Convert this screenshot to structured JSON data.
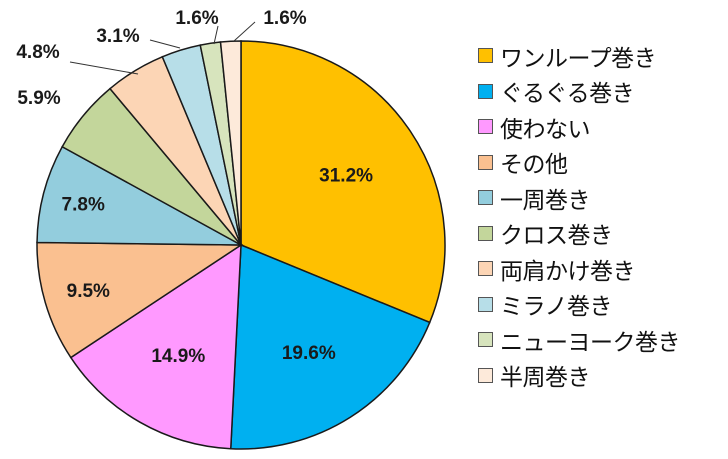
{
  "chart_data": {
    "type": "pie",
    "categories": [
      "ワンループ巻き",
      "ぐるぐる巻き",
      "使わない",
      "その他",
      "一周巻き",
      "クロス巻き",
      "両肩かけ巻き",
      "ミラノ巻き",
      "ニューヨーク巻き",
      "半周巻き"
    ],
    "values": [
      31.2,
      19.6,
      14.9,
      9.5,
      7.8,
      5.9,
      4.8,
      3.1,
      1.6,
      1.6
    ],
    "labels": [
      "31.2%",
      "19.6%",
      "14.9%",
      "9.5%",
      "7.8%",
      "5.9%",
      "4.8%",
      "3.1%",
      "1.6%",
      "1.6%"
    ],
    "colors": [
      "#FFC000",
      "#00B0F0",
      "#FF99FF",
      "#FAC090",
      "#93CDDD",
      "#C3D69B",
      "#FCD5B5",
      "#B7DEE8",
      "#D7E4BD",
      "#FDEADA"
    ],
    "legend_position": "right",
    "start_angle": "12 o'clock, clockwise"
  }
}
